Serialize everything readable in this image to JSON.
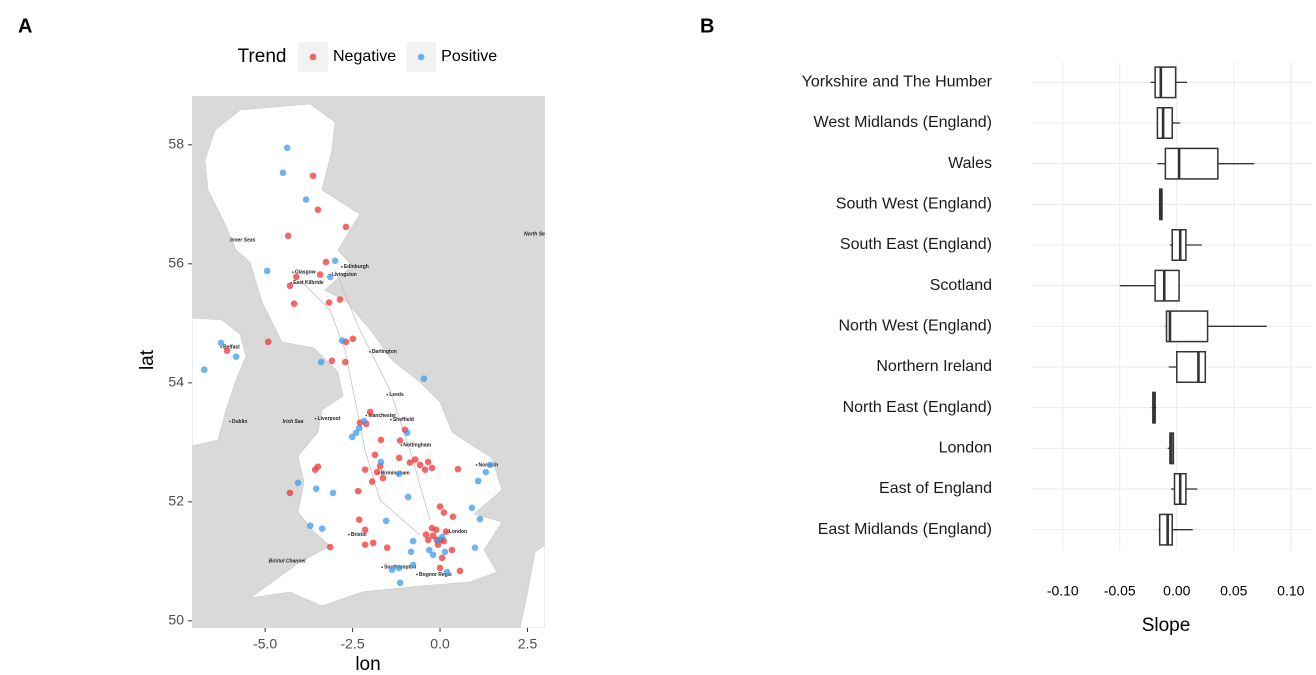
{
  "chart_data": [
    {
      "type": "scatter",
      "panel": "A",
      "legend_title": "Trend",
      "legend_position": "top",
      "x_label": "lon",
      "y_label": "lat",
      "xlim": [
        -7.09,
        3.0
      ],
      "ylim": [
        49.88,
        58.82
      ],
      "xticks": [
        {
          "value": -5,
          "label": "-5.0"
        },
        {
          "value": -2.5,
          "label": "-2.5"
        },
        {
          "value": 0,
          "label": "0.0"
        },
        {
          "value": 2.5,
          "label": "2.5"
        }
      ],
      "yticks": [
        50,
        52,
        54,
        56,
        58
      ],
      "series": [
        {
          "name": "Negative",
          "color": "#ef3434",
          "x": [
            -3.63,
            -3.49,
            -2.69,
            -4.34,
            -3.26,
            -3.43,
            -4.11,
            -4.29,
            -4.17,
            -3.17,
            -2.86,
            -4.91,
            -2.49,
            -2.69,
            -3.09,
            -2.71,
            -6.09,
            -2.0,
            -2.29,
            -2.11,
            -1.69,
            -1.0,
            -1.14,
            -1.86,
            -1.71,
            -2.14,
            -1.94,
            -2.34,
            -3.49,
            -3.57,
            -4.29,
            -1.17,
            -0.86,
            -0.71,
            -0.57,
            -0.43,
            -0.34,
            -0.23,
            0.51,
            -1.8,
            -1.63,
            0.0,
            0.11,
            0.37,
            -2.31,
            -2.14,
            -2.14,
            -1.91,
            -3.14,
            -0.23,
            -0.11,
            -0.2,
            -0.09,
            0.03,
            -0.06,
            0.11,
            0.17,
            -0.4,
            -0.34,
            0.34,
            0.0,
            0.57,
            0.06,
            -1.51
          ],
          "values": [
            57.48,
            56.91,
            56.62,
            56.47,
            56.03,
            55.82,
            55.78,
            55.63,
            55.33,
            55.35,
            55.4,
            54.69,
            54.74,
            54.69,
            54.37,
            54.35,
            54.54,
            53.51,
            53.33,
            53.31,
            53.04,
            53.21,
            53.03,
            52.79,
            52.6,
            52.54,
            52.34,
            52.18,
            52.59,
            52.54,
            52.15,
            52.74,
            52.66,
            52.71,
            52.62,
            52.54,
            52.67,
            52.57,
            52.55,
            52.5,
            52.4,
            51.92,
            51.82,
            51.75,
            51.7,
            51.53,
            51.28,
            51.31,
            51.24,
            51.56,
            51.53,
            51.43,
            51.36,
            51.36,
            51.28,
            51.34,
            51.5,
            51.45,
            51.36,
            51.19,
            50.89,
            50.84,
            51.06,
            51.23
          ]
        },
        {
          "name": "Positive",
          "color": "#3d9be9",
          "x": [
            -4.37,
            -4.49,
            -3.83,
            -4.94,
            -3.0,
            -3.14,
            -6.26,
            -5.83,
            -6.74,
            -2.8,
            -3.4,
            -0.46,
            -2.31,
            -2.4,
            -2.51,
            -2.17,
            -0.94,
            -1.69,
            -4.06,
            -3.06,
            -3.54,
            -0.91,
            -1.17,
            1.09,
            1.43,
            1.31,
            0.91,
            1.14,
            -3.71,
            -3.37,
            -1.54,
            -0.77,
            -0.83,
            -1.17,
            -0.31,
            -0.2,
            0.06,
            1.0,
            0.14,
            -1.37,
            -0.77,
            0.2,
            -1.14,
            -0.06
          ],
          "values": [
            57.95,
            57.53,
            57.08,
            55.88,
            56.05,
            55.78,
            54.67,
            54.44,
            54.22,
            54.71,
            54.35,
            54.07,
            53.24,
            53.16,
            53.09,
            53.36,
            53.16,
            52.67,
            52.32,
            52.15,
            52.22,
            52.08,
            52.47,
            52.35,
            52.62,
            52.5,
            51.9,
            51.71,
            51.6,
            51.55,
            51.68,
            51.34,
            51.16,
            50.89,
            51.19,
            51.11,
            51.41,
            51.23,
            51.16,
            50.86,
            50.94,
            50.82,
            50.64,
            51.36
          ]
        }
      ],
      "place_labels": [
        {
          "text": "London",
          "lon": 0.25,
          "lat": 51.5
        },
        {
          "text": "Dublin",
          "lon": -5.95,
          "lat": 53.35
        },
        {
          "text": "Edinburgh",
          "lon": -2.75,
          "lat": 55.95
        },
        {
          "text": "Glasgow",
          "lon": -4.15,
          "lat": 55.86
        },
        {
          "text": "East Kilbride",
          "lon": -4.2,
          "lat": 55.68
        },
        {
          "text": "Livingston",
          "lon": -3.1,
          "lat": 55.82
        },
        {
          "text": "Manchester",
          "lon": -2.05,
          "lat": 53.45
        },
        {
          "text": "Birmingham",
          "lon": -1.7,
          "lat": 52.48
        },
        {
          "text": "Leeds",
          "lon": -1.45,
          "lat": 53.8
        },
        {
          "text": "Liverpool",
          "lon": -3.5,
          "lat": 53.4
        },
        {
          "text": "Sheffield",
          "lon": -1.35,
          "lat": 53.38
        },
        {
          "text": "Nottingham",
          "lon": -1.05,
          "lat": 52.95
        },
        {
          "text": "Bristol",
          "lon": -2.55,
          "lat": 51.45
        },
        {
          "text": "Belfast",
          "lon": -6.2,
          "lat": 54.6
        },
        {
          "text": "Darlington",
          "lon": -1.95,
          "lat": 54.52
        },
        {
          "text": "Norwich",
          "lon": 1.1,
          "lat": 52.62
        },
        {
          "text": "Southampton",
          "lon": -1.6,
          "lat": 50.9
        },
        {
          "text": "Bognor Regis",
          "lon": -0.6,
          "lat": 50.78
        },
        {
          "text": "Irish Sea",
          "lon": -4.5,
          "lat": 53.35
        },
        {
          "text": "North Sea",
          "lon": 2.4,
          "lat": 56.5
        },
        {
          "text": "Bristol Channel",
          "lon": -4.9,
          "lat": 51.0
        },
        {
          "text": "Inner Seas",
          "lon": -6.0,
          "lat": 56.4
        }
      ]
    },
    {
      "type": "boxplot",
      "panel": "B",
      "orientation": "horizontal",
      "x_label": "Slope",
      "grid": true,
      "xlim": [
        -0.127,
        0.1186
      ],
      "xticks": [
        {
          "value": -0.1,
          "label": "-0.10"
        },
        {
          "value": -0.05,
          "label": "-0.05"
        },
        {
          "value": 0,
          "label": "0.00"
        },
        {
          "value": 0.05,
          "label": "0.05"
        },
        {
          "value": 0.1,
          "label": "0.10"
        }
      ],
      "color": "#333333",
      "categories": [
        "Yorkshire and The Humber",
        "West Midlands (England)",
        "Wales",
        "South West (England)",
        "South East (England)",
        "Scotland",
        "North West (England)",
        "Northern Ireland",
        "North East (England)",
        "London",
        "East of England",
        "East Midlands (England)"
      ],
      "whisker_low": [
        -0.023,
        -0.017,
        -0.017,
        -0.015,
        -0.006,
        -0.05,
        -0.01,
        -0.007,
        -0.022,
        -0.008,
        -0.005,
        -0.016
      ],
      "q1": [
        -0.019,
        -0.017,
        -0.01,
        -0.015,
        -0.004,
        -0.019,
        -0.009,
        0.0,
        -0.021,
        -0.006,
        -0.002,
        -0.015
      ],
      "median": [
        -0.014,
        -0.012,
        0.002,
        -0.014,
        0.003,
        -0.011,
        -0.006,
        0.019,
        -0.02,
        -0.005,
        0.003,
        -0.008
      ],
      "q3": [
        -0.001,
        -0.004,
        0.036,
        -0.013,
        0.008,
        0.002,
        0.027,
        0.025,
        -0.019,
        -0.003,
        0.008,
        -0.004
      ],
      "whisker_high": [
        0.009,
        0.003,
        0.068,
        -0.013,
        0.022,
        0.002,
        0.079,
        0.025,
        -0.018,
        -0.003,
        0.018,
        0.014
      ]
    }
  ]
}
